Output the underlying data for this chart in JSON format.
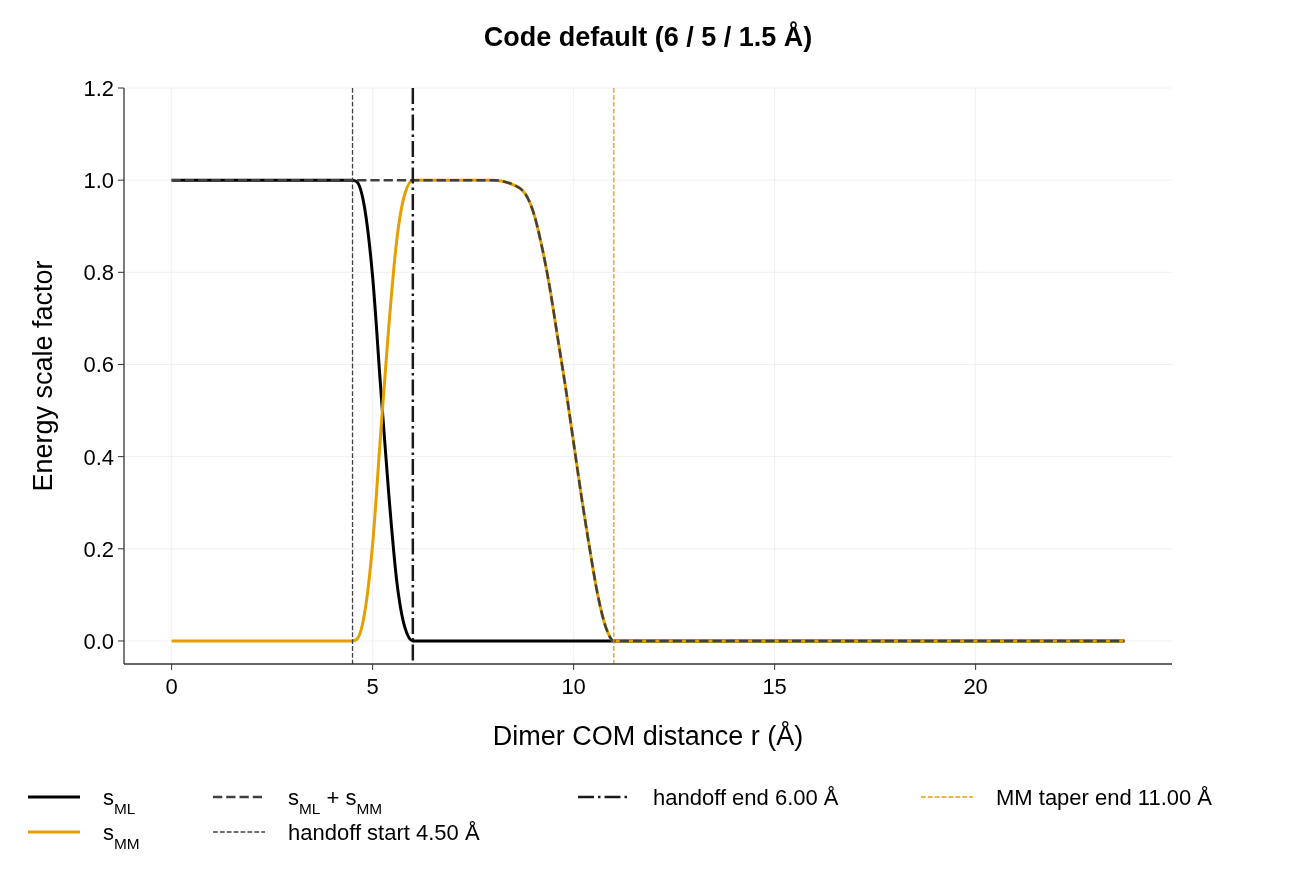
{
  "chart_data": {
    "type": "line",
    "title": "Code default (6 / 5 / 1.5 Å)",
    "xlabel": "Dimer COM distance r (Å)",
    "ylabel": "Energy scale factor",
    "xlim": [
      -1.185,
      24.885
    ],
    "ylim": [
      -0.05,
      1.2
    ],
    "xticks": [
      0,
      5,
      10,
      15,
      20
    ],
    "yticks": [
      {
        "value": 0,
        "label": "0.0"
      },
      0.2,
      0.4,
      0.6,
      0.8,
      {
        "value": 1,
        "label": "1.0"
      },
      1.2
    ],
    "grid": true,
    "legend": "bottom",
    "marker": "none",
    "series": [
      {
        "name": "s$_{ML}$",
        "color": "#000000",
        "line_style": "solid",
        "x": [
          0,
          4.5,
          4.6,
          4.8,
          5.0,
          5.2,
          5.4,
          5.6,
          5.8,
          6.0,
          23.7
        ],
        "values": [
          1,
          1,
          0.997,
          0.94,
          0.79,
          0.55,
          0.32,
          0.13,
          0.03,
          0,
          0
        ]
      },
      {
        "name": "s$_{MM}$",
        "color": "#e69f00",
        "line_style": "solid",
        "x": [
          0,
          4.5,
          4.6,
          4.8,
          5.0,
          5.2,
          5.4,
          5.6,
          5.8,
          6.0,
          7,
          8,
          8.5,
          8.8,
          9,
          9.2,
          9.4,
          9.6,
          9.8,
          10,
          10.2,
          10.4,
          10.6,
          10.8,
          11,
          23.7
        ],
        "values": [
          0,
          0,
          0.003,
          0.06,
          0.21,
          0.45,
          0.68,
          0.87,
          0.97,
          1,
          1,
          1,
          0.99,
          0.97,
          0.93,
          0.86,
          0.77,
          0.66,
          0.55,
          0.43,
          0.31,
          0.2,
          0.1,
          0.03,
          0,
          0
        ]
      },
      {
        "name": "s$_{ML}$ + s$_{MM}$",
        "color": "#404040",
        "line_style": "dashed",
        "x": [
          0,
          8,
          8.5,
          8.8,
          9,
          9.2,
          9.4,
          9.6,
          9.8,
          10,
          10.2,
          10.4,
          10.6,
          10.8,
          11,
          23.7
        ],
        "values": [
          1,
          1,
          0.99,
          0.97,
          0.93,
          0.86,
          0.77,
          0.66,
          0.55,
          0.43,
          0.31,
          0.2,
          0.1,
          0.03,
          0,
          0
        ]
      }
    ],
    "ref_lines": [
      {
        "axis": "x",
        "value": 4.5,
        "label": "handoff start 4.50 Å",
        "color": "#404040",
        "line_style": "dashed"
      },
      {
        "axis": "x",
        "value": 6.0,
        "label": "handoff end 6.00 Å",
        "color": "#1a1a1a",
        "line_style": "dashdot"
      },
      {
        "axis": "x",
        "value": 11.0,
        "label": "MM taper end 11.00 Å",
        "color": "#e69f00",
        "line_style": "dashed"
      }
    ]
  }
}
